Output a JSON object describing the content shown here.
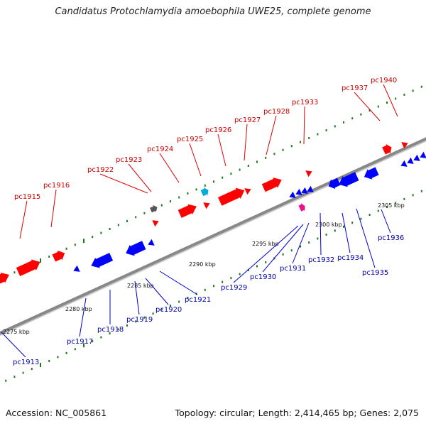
{
  "title": "Candidatus Protochlamydia amoebophila UWE25, complete genome",
  "footer": {
    "accession": "Accession: NC_005861",
    "summary": "Topology: circular; Length: 2,414,465 bp; Genes: 2,075"
  },
  "colors": {
    "forward_gene": "#ff0000",
    "reverse_gene": "#0000ff",
    "rna_gene": "#00aadd",
    "pseudo_gene": "#555555",
    "other_gene": "#ee1188",
    "tick": "#1a7a1a",
    "backbone": "#888888",
    "top_label": "#cc0000",
    "bottom_label": "#0000aa"
  },
  "scale_labels": [
    "2275 kbp",
    "2280 kbp",
    "2285 kbp",
    "2290 kbp",
    "2295 kbp",
    "2300 kbp",
    "2305 kbp"
  ],
  "top_genes": [
    "pc1915",
    "pc1916",
    "pc1922",
    "pc1923",
    "pc1924",
    "pc1925",
    "pc1926",
    "pc1927",
    "pc1928",
    "pc1933",
    "pc1937",
    "pc1940"
  ],
  "bottom_genes": [
    "pc1913",
    "pc1917",
    "pc1918",
    "pc1919",
    "pc1920",
    "pc1921",
    "pc1929",
    "pc1930",
    "pc1931",
    "pc1932",
    "pc1934",
    "pc1935",
    "pc1936"
  ]
}
